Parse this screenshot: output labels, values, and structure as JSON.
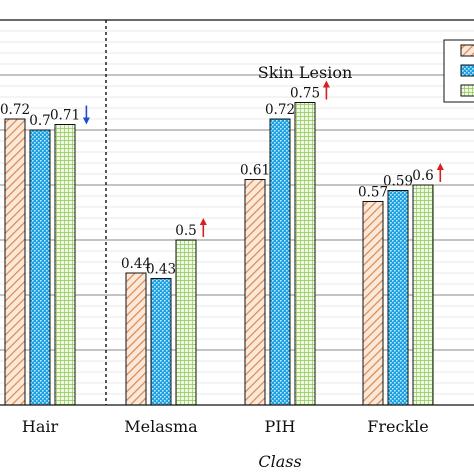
{
  "chart_data": {
    "type": "bar",
    "title": "",
    "xlabel": "Class",
    "ylabel": "",
    "annotation": "Skin Lesion",
    "categories": [
      "Hair",
      "Melasma",
      "PIH",
      "Freckle"
    ],
    "ylim": [
      0.2,
      0.9
    ],
    "grid": true,
    "legend": "top-right",
    "series": [
      {
        "values": [
          0.72,
          0.44,
          0.61,
          0.57
        ],
        "labels": [
          "0.72",
          "0.44",
          "0.61",
          "0.57"
        ],
        "color": "#e8a87c",
        "pattern": "diagonal-hatch"
      },
      {
        "values": [
          0.7,
          0.43,
          0.72,
          0.59
        ],
        "labels": [
          "0.7",
          "0.43",
          "0.72",
          "0.59"
        ],
        "color": "#1aa0e0",
        "pattern": "dots"
      },
      {
        "values": [
          0.71,
          0.5,
          0.75,
          0.6
        ],
        "labels": [
          "0.71",
          "0.5",
          "0.75",
          "0.6"
        ],
        "color": "#a8d878",
        "pattern": "grid"
      }
    ],
    "arrows": [
      {
        "category": "Hair",
        "direction": "down",
        "color": "#1f4fc8"
      },
      {
        "category": "Melasma",
        "direction": "up",
        "color": "#d42020"
      },
      {
        "category": "PIH",
        "direction": "up",
        "color": "#d42020"
      },
      {
        "category": "Freckle",
        "direction": "up",
        "color": "#d42020"
      }
    ]
  }
}
